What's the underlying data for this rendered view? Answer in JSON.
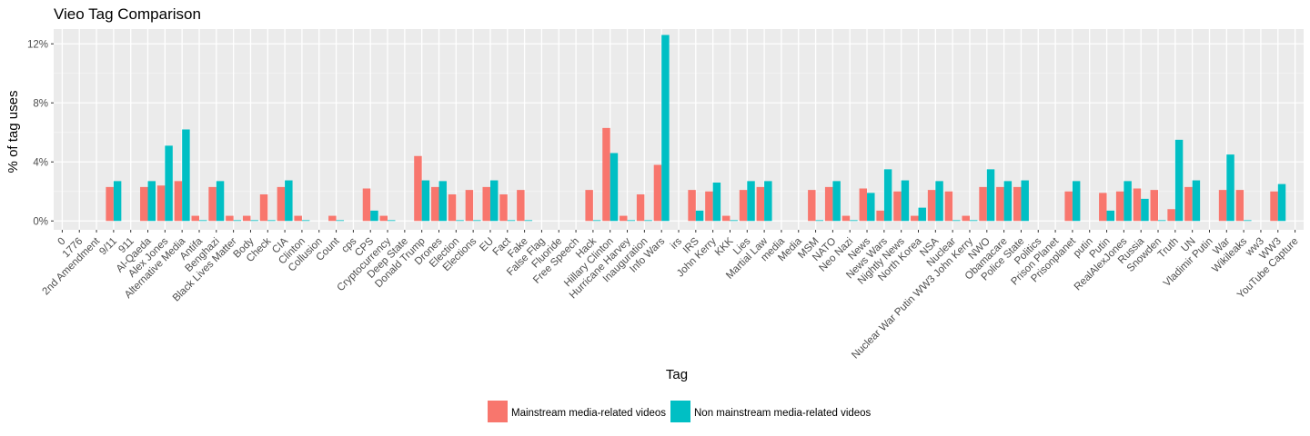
{
  "chart_data": {
    "type": "bar",
    "title": "Vieo Tag Comparison",
    "xlabel": "Tag",
    "ylabel": "% of tag uses",
    "ylim": [
      -0.6,
      13.0
    ],
    "yticks": [
      0,
      4,
      8,
      12
    ],
    "ytick_labels": [
      "0%",
      "4%",
      "8%",
      "12%"
    ],
    "grid": true,
    "legend_position": "bottom",
    "categories": [
      "0",
      "1776",
      "2nd Amendment",
      "9/11",
      "911",
      "Al-Qaeda",
      "Alex Jones",
      "Alternative Media",
      "Antifa",
      "Benghazi",
      "Black Lives Matter",
      "Body",
      "Check",
      "CIA",
      "Clinton",
      "Collusion",
      "Count",
      "cps",
      "CPS",
      "Cryptocurrency",
      "Deep State",
      "Donald Trump",
      "Drones",
      "Election",
      "Elections",
      "EU",
      "Fact",
      "Fake",
      "False Flag",
      "Fluoride",
      "Free Speech",
      "Hack",
      "Hillary Clinton",
      "Hurricane Harvey",
      "Inauguration",
      "Info Wars",
      "irs",
      "IRS",
      "John Kerry",
      "KKK",
      "Lies",
      "Martial Law",
      "media",
      "Media",
      "MSM",
      "NATO",
      "Neo Nazi",
      "News",
      "News Wars",
      "Nightly News",
      "North Korea",
      "NSA",
      "Nuclear",
      "Nuclear War Putin WW3 John Kerry",
      "NWO",
      "Obamacare",
      "Police State",
      "Politics",
      "Prison Planet",
      "Prisonplanet",
      "putin",
      "Putin",
      "RealAlexJones",
      "Russia",
      "Snowden",
      "Truth",
      "UN",
      "Vladimir Putin",
      "War",
      "Wikileaks",
      "ww3",
      "WW3",
      "YouTube Capture"
    ],
    "series": [
      {
        "name": "Mainstream media-related videos",
        "color": "#F8766D",
        "values": [
          0,
          0,
          0,
          2.3,
          0,
          2.3,
          2.4,
          2.7,
          0.35,
          2.3,
          0.35,
          0.35,
          1.8,
          2.3,
          0.35,
          0,
          0.35,
          0,
          2.2,
          0.35,
          0,
          4.4,
          2.3,
          1.8,
          2.1,
          2.3,
          1.8,
          2.1,
          0,
          0,
          0,
          2.1,
          6.3,
          0.35,
          1.8,
          3.8,
          0,
          2.1,
          2.0,
          0.35,
          2.1,
          2.3,
          0,
          0,
          2.1,
          2.3,
          0.35,
          2.2,
          0.7,
          2.0,
          0.35,
          2.1,
          2.0,
          0.35,
          2.3,
          2.3,
          2.3,
          0,
          0,
          2.0,
          0,
          1.9,
          2.0,
          2.2,
          2.1,
          0.8,
          2.3,
          0,
          2.1,
          2.1,
          0,
          2.0,
          0
        ]
      },
      {
        "name": "Non mainstream media-related videos",
        "color": "#00BFC4",
        "values": [
          0,
          0,
          0,
          2.7,
          0,
          2.7,
          5.1,
          6.2,
          0.05,
          2.7,
          0.05,
          0.05,
          0.05,
          2.75,
          0.05,
          0,
          0.05,
          0,
          0.7,
          0.05,
          0,
          2.75,
          2.7,
          0.05,
          0.05,
          2.75,
          0.05,
          0.05,
          0,
          0,
          0,
          0.05,
          4.6,
          0.05,
          0.05,
          12.6,
          0,
          0.7,
          2.6,
          0.05,
          2.7,
          2.7,
          0,
          0,
          0.05,
          2.7,
          0.05,
          1.9,
          3.5,
          2.75,
          0.9,
          2.7,
          0.05,
          0.05,
          3.5,
          2.7,
          2.75,
          0,
          0,
          2.7,
          0,
          0.7,
          2.7,
          1.5,
          0.05,
          5.5,
          2.75,
          0,
          4.5,
          0.05,
          0,
          2.5,
          0
        ]
      }
    ]
  }
}
